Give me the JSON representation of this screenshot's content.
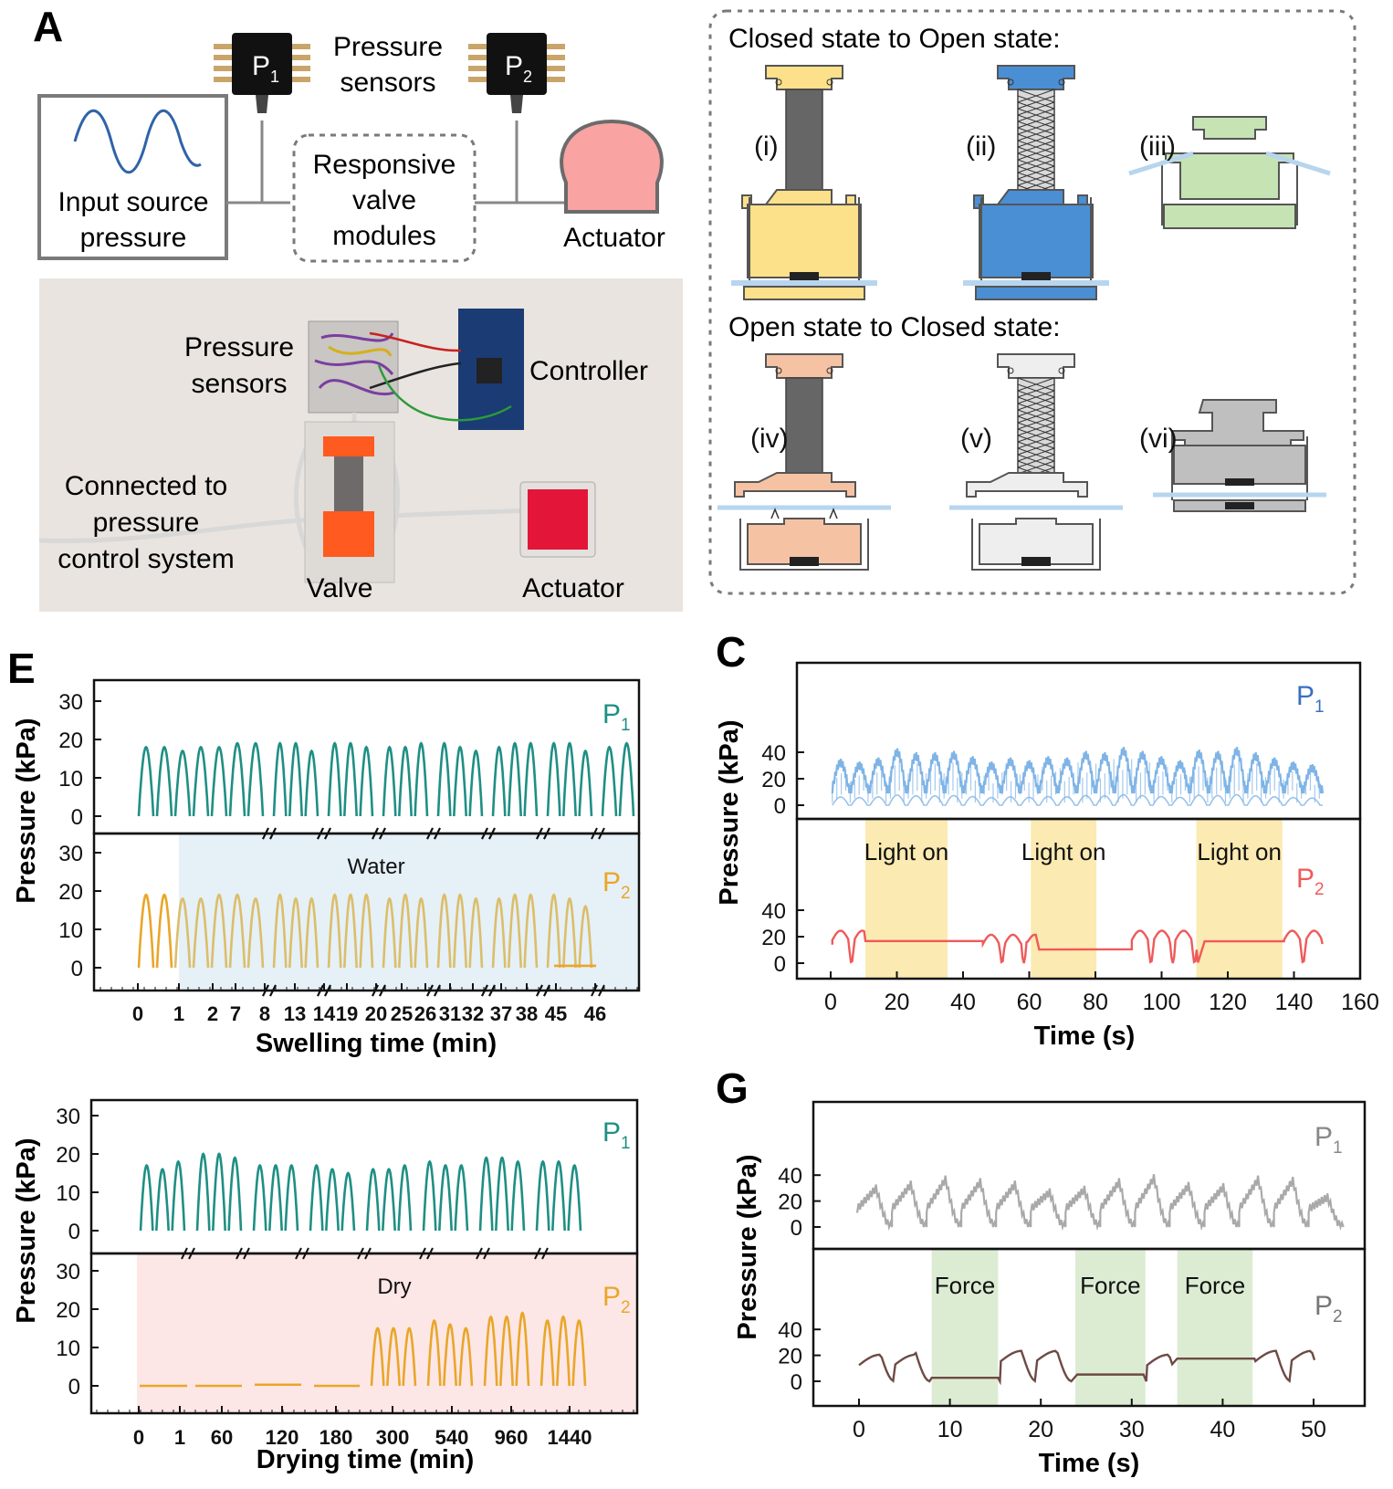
{
  "panels": {
    "a_letter": "A",
    "e_letter": "E",
    "c_letter": "C",
    "g_letter": "G"
  },
  "schematic": {
    "sensor_1_label": "P",
    "sensor_1_sub": "1",
    "sensor_2_label": "P",
    "sensor_2_sub": "2",
    "sensors_title_line1": "Pressure",
    "sensors_title_line2": "sensors",
    "input_line1": "Input source",
    "input_line2": "pressure",
    "valve_line1": "Responsive",
    "valve_line2": "valve",
    "valve_line3": "modules",
    "actuator": "Actuator"
  },
  "photo": {
    "pressure_sensors_line1": "Pressure",
    "pressure_sensors_line2": "sensors",
    "controller": "Controller",
    "connected_line1": "Connected to",
    "connected_line2": "pressure",
    "connected_line3": "control system",
    "valve": "Valve",
    "actuator": "Actuator"
  },
  "states": {
    "closed_to_open": "Closed state to Open state:",
    "open_to_closed": "Open state to Closed state:",
    "labels": [
      "(i)",
      "(ii)",
      "(iii)",
      "(iv)",
      "(v)",
      "(vi)"
    ],
    "colors": {
      "i": "#fde08a",
      "ii": "#4a8fd4",
      "iii": "#c6e3b4",
      "iv": "#f5c3a3",
      "v": "#eeeeee",
      "vi": "#bfbfbf",
      "film": "#b7d5ee"
    }
  },
  "colors": {
    "teal": "#1f8f84",
    "gold": "#e9a628",
    "gold_light": "#dbbe6a",
    "blue": "#7fb4e6",
    "red": "#ef5a5a",
    "gray": "#a9a9a9",
    "brown": "#6e4a45",
    "water_bg": "#e6f0f7",
    "dry_bg": "#fde7e6",
    "light_bg": "#fbeab1",
    "force_bg": "#dcecd3"
  },
  "chart_data": [
    {
      "id": "E-swelling",
      "type": "line",
      "ylabel": "Pressure (kPa)",
      "xlabel": "Swelling time (min)",
      "ylim": [
        0,
        30
      ],
      "yticks": [
        0,
        10,
        20,
        30
      ],
      "x_tick_labels": [
        "0",
        "1",
        "2",
        "7",
        "8",
        "13",
        "14",
        "19",
        "20",
        "25",
        "26",
        "31",
        "32",
        "37",
        "38",
        "45",
        "46"
      ],
      "x": [
        0,
        1,
        2,
        7,
        8,
        13,
        14,
        19,
        20,
        25,
        26,
        31,
        32,
        37,
        38,
        45,
        46
      ],
      "shaded_region": {
        "label": "Water",
        "x_start": 1,
        "color": "#e6f0f7"
      },
      "series": [
        {
          "name": "P1",
          "label": "P",
          "sub": "1",
          "peaks": [
            [
              18,
              18,
              17,
              18,
              18,
              19,
              19
            ],
            [
              19,
              19,
              17
            ],
            [
              19,
              19,
              18
            ],
            [
              18,
              18,
              19
            ],
            [
              19,
              18,
              17
            ],
            [
              18,
              19,
              19
            ],
            [
              19,
              19,
              17
            ],
            [
              18,
              19
            ]
          ]
        },
        {
          "name": "P2",
          "label": "P",
          "sub": "2",
          "peaks": [
            [
              19,
              19,
              18,
              18,
              19,
              19,
              18
            ],
            [
              19,
              18,
              18
            ],
            [
              19,
              19,
              19
            ],
            [
              18,
              19,
              18
            ],
            [
              19,
              19,
              18
            ],
            [
              18,
              19,
              19
            ],
            [
              19,
              18,
              16
            ]
          ],
          "final_flat": 0.5
        }
      ]
    },
    {
      "id": "E-drying",
      "type": "line",
      "ylabel": "Pressure (kPa)",
      "xlabel": "Drying time (min)",
      "ylim": [
        0,
        30
      ],
      "yticks": [
        0,
        10,
        20,
        30
      ],
      "x_tick_labels": [
        "0",
        "1",
        "60",
        "120",
        "180",
        "300",
        "540",
        "960",
        "1440"
      ],
      "x": [
        0,
        1,
        60,
        120,
        180,
        300,
        540,
        960,
        1440
      ],
      "shaded_region": {
        "label": "Dry",
        "color": "#fde7e6"
      },
      "series": [
        {
          "name": "P1",
          "label": "P",
          "sub": "1",
          "peaks": [
            [
              17,
              16,
              18
            ],
            [
              20,
              20,
              19
            ],
            [
              17,
              17,
              17
            ],
            [
              17,
              16,
              15
            ],
            [
              16,
              16,
              17
            ],
            [
              18,
              17,
              17
            ],
            [
              19,
              19,
              18
            ],
            [
              18,
              18,
              17
            ]
          ]
        },
        {
          "name": "P2",
          "label": "P",
          "sub": "2",
          "flat_segments": [
            0,
            0,
            0.3,
            0
          ],
          "peaks": [
            [
              15,
              15,
              15
            ],
            [
              17,
              16,
              15
            ],
            [
              18,
              18,
              19
            ],
            [
              17,
              18,
              17
            ]
          ]
        }
      ]
    },
    {
      "id": "C",
      "type": "line",
      "xlabel": "Time (s)",
      "ylabel": "Pressure (kPa)",
      "xlim": [
        0,
        160
      ],
      "xticks": [
        0,
        20,
        40,
        60,
        80,
        100,
        120,
        140,
        160
      ],
      "ylim": [
        0,
        40
      ],
      "yticks": [
        0,
        20,
        40
      ],
      "series": [
        {
          "name": "P1",
          "label": "P",
          "sub": "1",
          "period_s": 7.1,
          "peaks": [
            32,
            30,
            33,
            40,
            37,
            37,
            38,
            34,
            30,
            33,
            31,
            34,
            33,
            38,
            37,
            41,
            38,
            34,
            31,
            39,
            38,
            41,
            37,
            33,
            30,
            28
          ]
        },
        {
          "name": "P2",
          "label": "P",
          "sub": "2",
          "hold_windows": [
            [
              10.5,
              35.3,
              16.7
            ],
            [
              62,
              80,
              10.3
            ],
            [
              80,
              91,
              10.5
            ],
            [
              111,
              137,
              16.5
            ]
          ]
        }
      ],
      "shaded_regions": [
        {
          "label": "Light on",
          "x": [
            10.5,
            35.3
          ]
        },
        {
          "label": "Light on",
          "x": [
            60.5,
            80.3
          ]
        },
        {
          "label": "Light on",
          "x": [
            110.5,
            136.5
          ]
        }
      ]
    },
    {
      "id": "G",
      "type": "line",
      "xlabel": "Time (s)",
      "ylabel": "Pressure (kPa)",
      "xlim": [
        -2,
        52
      ],
      "xticks": [
        0,
        10,
        20,
        30,
        40,
        50
      ],
      "ylim": [
        0,
        40
      ],
      "yticks": [
        0,
        20,
        40
      ],
      "series": [
        {
          "name": "P1",
          "label": "P",
          "sub": "1",
          "period_s": 3.95,
          "peaks": [
            30,
            33,
            37,
            35,
            33,
            27,
            29,
            35,
            38,
            32,
            31,
            37,
            36,
            23
          ]
        },
        {
          "name": "P2",
          "label": "P",
          "sub": "2",
          "hold_levels": [
            2.7,
            5.2,
            17.5
          ]
        }
      ],
      "shaded_regions": [
        {
          "label": "Force",
          "x": [
            8,
            15.3
          ]
        },
        {
          "label": "Force",
          "x": [
            23.8,
            31.5
          ]
        },
        {
          "label": "Force",
          "x": [
            35,
            43.3
          ]
        }
      ]
    }
  ]
}
